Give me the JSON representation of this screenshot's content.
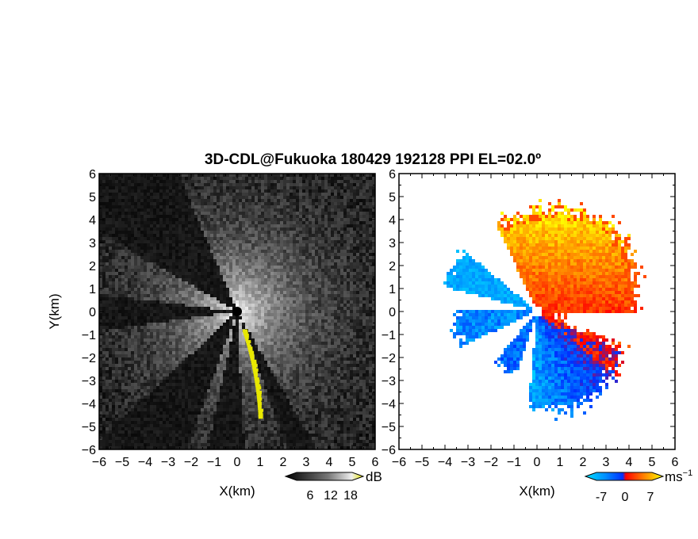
{
  "title": "3D-CDL@Fukuoka 180429 192128 PPI EL=02.0º",
  "chart_data": [
    {
      "type": "heatmap",
      "panel": "left",
      "variable": "reflectivity",
      "xlabel": "X(km)",
      "ylabel": "Y(km)",
      "xlim": [
        -6,
        6
      ],
      "ylim": [
        -6,
        6
      ],
      "x_ticks": [
        "-6",
        "-5",
        "-4",
        "-3",
        "-2",
        "-1",
        "0",
        "1",
        "2",
        "3",
        "4",
        "5",
        "6"
      ],
      "y_ticks": [
        "6",
        "5",
        "4",
        "3",
        "2",
        "1",
        "0",
        "-1",
        "-2",
        "-3",
        "-4",
        "-5",
        "-6"
      ],
      "colorscale": "gray",
      "blocked_sectors_deg": [
        [
          113,
          150
        ],
        [
          173,
          188
        ],
        [
          223,
          250
        ],
        [
          258,
          273
        ],
        [
          290,
          300
        ]
      ],
      "colorbar": {
        "ticks": [
          "6",
          "12",
          "18"
        ],
        "unit": "dB",
        "colors": [
          "#000000",
          "#444444",
          "#888888",
          "#cccccc",
          "#ffffff",
          "#e8e800"
        ]
      }
    },
    {
      "type": "heatmap",
      "panel": "right",
      "variable": "radial velocity",
      "xlabel": "X(km)",
      "ylabel": "",
      "xlim": [
        -6,
        6
      ],
      "ylim": [
        -6,
        6
      ],
      "x_ticks": [
        "-6",
        "-5",
        "-4",
        "-3",
        "-2",
        "-1",
        "0",
        "1",
        "2",
        "3",
        "4",
        "5",
        "6"
      ],
      "y_ticks": [
        "6",
        "5",
        "4",
        "3",
        "2",
        "1",
        "0",
        "-1",
        "-2",
        "-3",
        "-4",
        "-5",
        "-6"
      ],
      "colorscale": "velocity",
      "colorbar": {
        "ticks": [
          "-7",
          "0",
          "7"
        ],
        "unit": "ms",
        "unit_exp": "−1",
        "colors": [
          "#00e0ff",
          "#0080ff",
          "#0030ff",
          "#ff0000",
          "#ff8000",
          "#ffff00"
        ]
      }
    }
  ]
}
